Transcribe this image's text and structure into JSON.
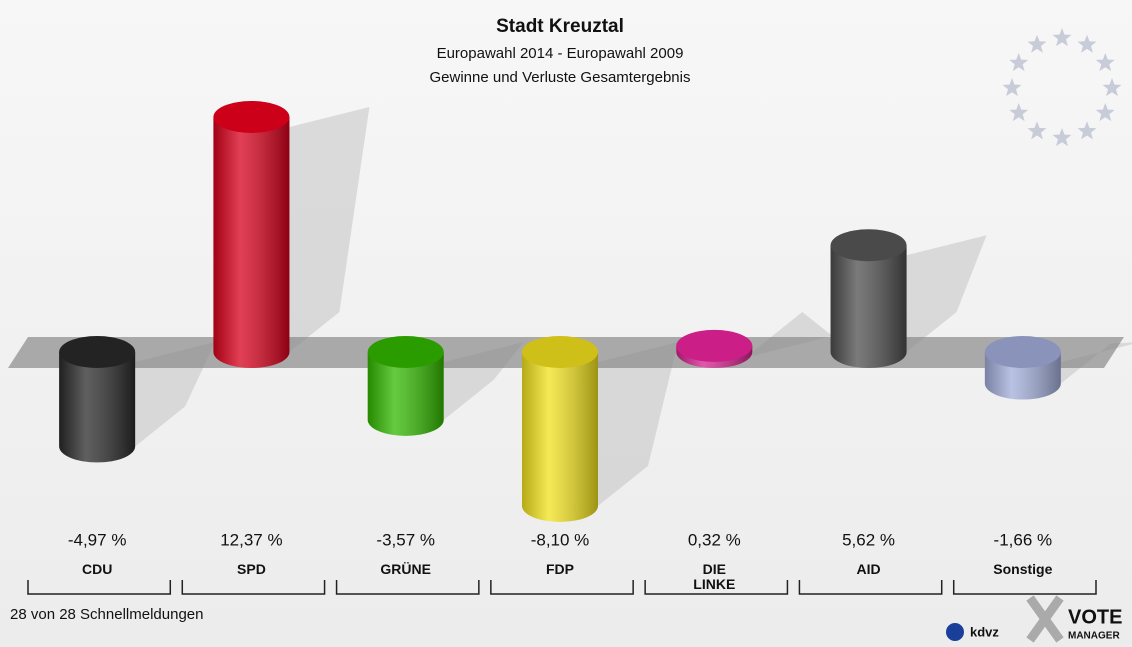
{
  "chart_data": {
    "type": "bar",
    "title": "Stadt Kreuztal",
    "subtitle": "Europawahl 2014 - Europawahl 2009",
    "subtitle2": "Gewinne und Verluste Gesamtergebnis",
    "categories": [
      "CDU",
      "SPD",
      "GRÜNE",
      "FDP",
      "DIE LINKE",
      "AID",
      "Sonstige"
    ],
    "values": [
      -4.97,
      12.37,
      -3.57,
      -8.1,
      0.32,
      5.62,
      -1.66
    ],
    "value_labels": [
      "-4,97 %",
      "12,37 %",
      "-3,57 %",
      "-8,10 %",
      "0,32 %",
      "5,62 %",
      "-1,66 %"
    ],
    "colors": [
      "#2a2a2a",
      "#d8001c",
      "#33b800",
      "#f2e21e",
      "#d6208e",
      "#4e4e4e",
      "#a3aedb"
    ],
    "ylim": [
      -10,
      14
    ],
    "footer": "28 von 28 Schnellmeldungen",
    "logo_texts": [
      "kdvz",
      "VOTE",
      "MANAGER"
    ]
  }
}
